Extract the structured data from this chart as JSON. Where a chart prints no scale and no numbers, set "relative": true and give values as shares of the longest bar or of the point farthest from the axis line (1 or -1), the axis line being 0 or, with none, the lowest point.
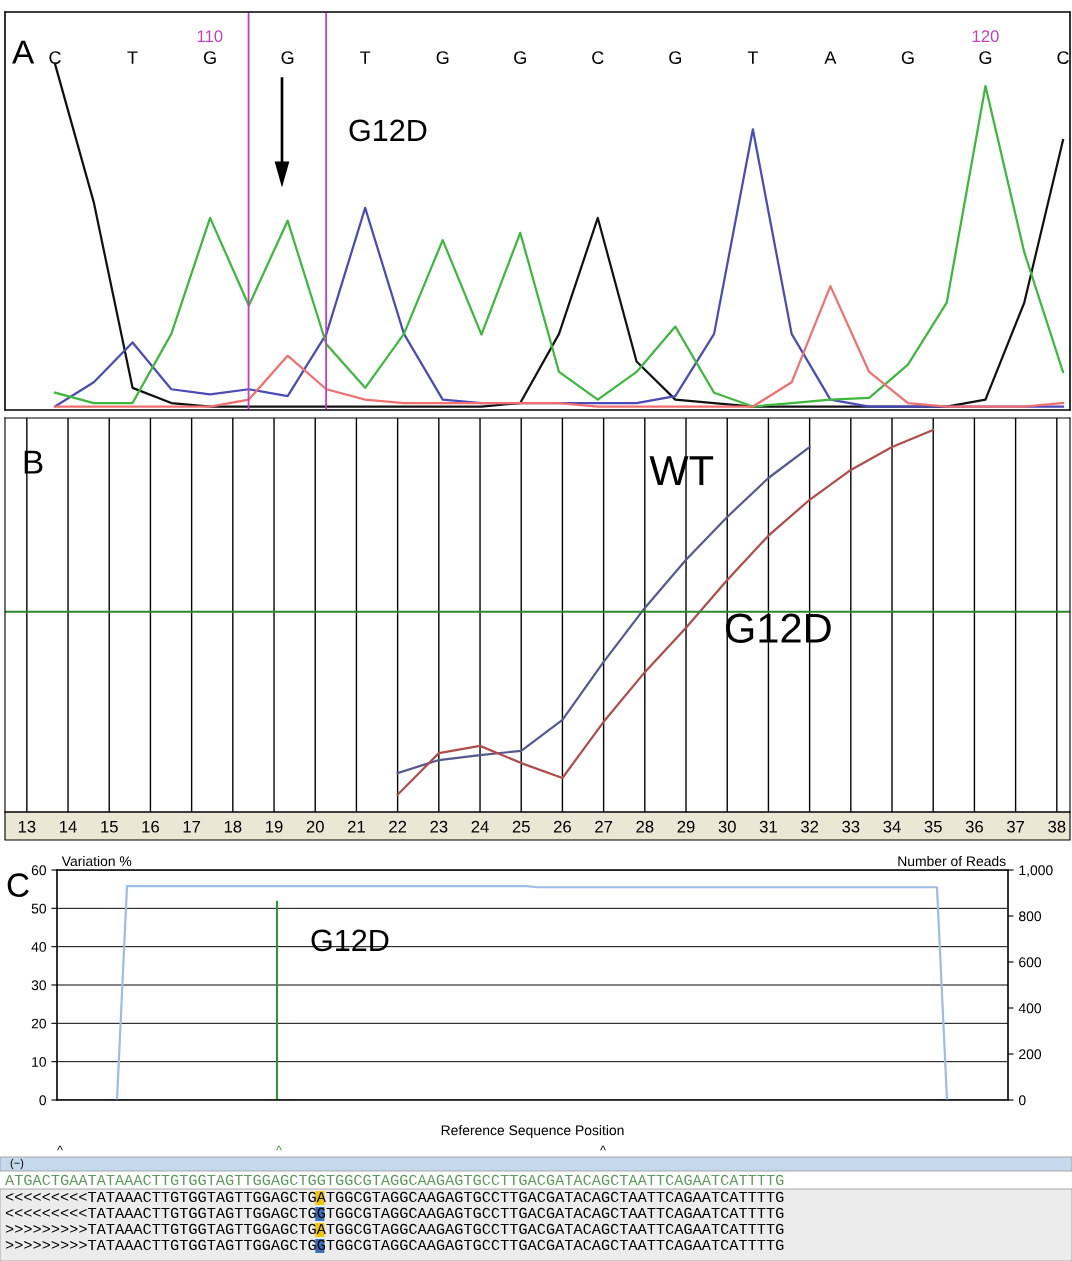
{
  "chart_data": [
    {
      "type": "line",
      "relative": true,
      "tick_labels": "x",
      "categories": [
        "C",
        null,
        "T",
        null,
        "G",
        null,
        "G",
        null,
        "T",
        null,
        "G",
        null,
        "G",
        null,
        "C",
        null,
        "G",
        null,
        "T",
        null,
        "A",
        null,
        "G",
        null,
        "G",
        null,
        "C"
      ],
      "x2lim": [
        107.36,
        121.09
      ],
      "x2ticks": [
        110,
        120
      ],
      "series": [
        {
          "color": "#111111",
          "values": [
            1.0,
            0.6,
            0.064,
            0.02,
            0.01,
            0.01,
            0.01,
            0.01,
            0.01,
            0.01,
            0.01,
            0.01,
            0.02,
            0.22,
            0.555,
            0.14,
            0.03,
            0.02,
            0.01,
            0.01,
            0.01,
            0.01,
            0.01,
            0.01,
            0.03,
            0.31,
            0.78
          ]
        },
        {
          "color": "#4a4ab8",
          "values": [
            0.01,
            0.08,
            0.195,
            0.06,
            0.045,
            0.06,
            0.04,
            0.22,
            0.584,
            0.22,
            0.03,
            0.02,
            0.02,
            0.02,
            0.02,
            0.02,
            0.04,
            0.22,
            0.811,
            0.22,
            0.03,
            0.01,
            0.01,
            0.01,
            0.01,
            0.01,
            0.01
          ]
        },
        {
          "color": "#3cb83c",
          "values": [
            0.05,
            0.02,
            0.02,
            0.22,
            0.555,
            0.302,
            0.547,
            0.19,
            0.064,
            0.22,
            0.491,
            0.218,
            0.512,
            0.11,
            0.03,
            0.11,
            0.241,
            0.05,
            0.01,
            0.02,
            0.03,
            0.035,
            0.131,
            0.31,
            0.936,
            0.456,
            0.11
          ]
        },
        {
          "color": "#f07070",
          "values": [
            0.01,
            0.01,
            0.01,
            0.01,
            0.01,
            0.03,
            0.157,
            0.06,
            0.03,
            0.02,
            0.02,
            0.02,
            0.02,
            0.02,
            0.01,
            0.01,
            0.01,
            0.01,
            0.01,
            0.08,
            0.358,
            0.11,
            0.02,
            0.01,
            0.01,
            0.01,
            0.02
          ]
        }
      ],
      "ref_lines": [
        {
          "axis": "x2",
          "value": 110.5,
          "color": "#c040c0"
        },
        {
          "axis": "x2",
          "value": 111.5,
          "color": "#c040c0"
        }
      ],
      "annotations": [
        "A",
        "G12D"
      ]
    },
    {
      "type": "line",
      "relative": true,
      "tick_labels": "x",
      "grid": "x",
      "categories": [
        "13",
        "14",
        "15",
        "16",
        "17",
        "18",
        "19",
        "20",
        "21",
        "22",
        "23",
        "24",
        "25",
        "26",
        "27",
        "28",
        "29",
        "30",
        "31",
        "32",
        "33",
        "34",
        "35",
        "36",
        "37",
        "38"
      ],
      "series": [
        {
          "name": "WT",
          "color": "#555a8c",
          "values": [
            null,
            null,
            null,
            null,
            null,
            null,
            null,
            null,
            null,
            0.102,
            0.136,
            0.149,
            0.16,
            0.241,
            0.393,
            0.534,
            0.66,
            0.772,
            0.874,
            0.955,
            null,
            null,
            null,
            null,
            null,
            null
          ]
        },
        {
          "name": "G12D",
          "color": "#b04c4a",
          "values": [
            null,
            null,
            null,
            null,
            null,
            null,
            null,
            null,
            null,
            0.045,
            0.154,
            0.173,
            0.128,
            0.089,
            0.236,
            0.366,
            0.482,
            0.607,
            0.723,
            0.817,
            0.895,
            0.955,
            1.0,
            null,
            null,
            null
          ]
        }
      ],
      "ref_lines": [
        {
          "axis": "y",
          "value": 0.524,
          "color": "#2a8a2a"
        }
      ],
      "annotations": [
        "B"
      ]
    },
    {
      "type": "bar",
      "tick_labels": "y",
      "grid": "y",
      "xlabel": "Reference Sequence Position",
      "ylabel": "Variation %",
      "y2label": "Number of Reads",
      "categories": [
        null,
        null,
        null,
        null,
        null,
        null,
        null,
        null,
        null,
        null,
        null,
        null,
        null,
        null,
        null,
        null,
        null,
        null,
        null,
        null,
        null,
        null,
        null,
        null,
        null,
        null,
        null,
        null,
        null,
        null,
        null,
        null,
        null,
        null,
        null,
        null,
        null,
        null,
        null,
        null,
        null,
        null,
        null,
        null,
        null,
        null,
        null,
        null,
        null,
        null,
        null,
        null,
        null,
        null,
        null,
        null,
        null,
        null,
        null,
        null,
        null,
        null,
        null,
        null,
        null,
        null,
        null,
        null,
        null,
        null,
        null,
        null,
        null,
        null,
        null,
        null,
        null,
        null,
        null,
        null,
        null,
        null,
        null,
        null,
        null,
        null,
        null,
        null,
        null,
        null,
        null,
        null,
        null,
        null,
        null,
        null
      ],
      "ylim": [
        0,
        60
      ],
      "yticks": [
        0,
        10,
        20,
        30,
        40,
        50,
        60
      ],
      "y2lim": [
        0,
        1000
      ],
      "y2ticks": [
        0,
        200,
        400,
        600,
        800,
        {
          "value": 1000,
          "label": "1,000"
        }
      ],
      "series": [
        {
          "type": "bar",
          "color": "#2a9a2a",
          "values": [
            null,
            null,
            null,
            null,
            null,
            null,
            null,
            null,
            null,
            null,
            null,
            null,
            null,
            null,
            null,
            null,
            null,
            null,
            null,
            null,
            null,
            null,
            52,
            null,
            null,
            null,
            null,
            null,
            null,
            null,
            null,
            null,
            null,
            null,
            null,
            null,
            null,
            null,
            null,
            null,
            null,
            null,
            null,
            null,
            null,
            null,
            null,
            null,
            null,
            null,
            null,
            null,
            null,
            null,
            null,
            null,
            null,
            null,
            null,
            null,
            null,
            null,
            null,
            null,
            null,
            null,
            null,
            null,
            null,
            null,
            null,
            null,
            null,
            null,
            null,
            null,
            null,
            null,
            null,
            null,
            null,
            null,
            null,
            null,
            null,
            null,
            null,
            null,
            null,
            null,
            null,
            null,
            null,
            null,
            null,
            null
          ]
        },
        {
          "type": "line",
          "axis": "y2",
          "color": "#9dbde6",
          "values": [
            null,
            null,
            null,
            null,
            null,
            null,
            0,
            930,
            930,
            930,
            930,
            930,
            930,
            930,
            930,
            930,
            930,
            930,
            930,
            930,
            930,
            930,
            930,
            930,
            930,
            930,
            930,
            930,
            930,
            930,
            930,
            930,
            930,
            930,
            930,
            930,
            930,
            930,
            930,
            930,
            930,
            930,
            930,
            930,
            930,
            930,
            930,
            930,
            925,
            925,
            925,
            925,
            925,
            925,
            925,
            925,
            925,
            925,
            925,
            925,
            925,
            925,
            925,
            925,
            925,
            925,
            925,
            925,
            925,
            925,
            925,
            925,
            925,
            925,
            925,
            925,
            925,
            925,
            925,
            925,
            925,
            925,
            925,
            925,
            925,
            925,
            925,
            925,
            925,
            0,
            null,
            null,
            null,
            null,
            null,
            null
          ]
        }
      ],
      "annotations": [
        "C",
        "G12D",
        "^",
        "^",
        "^",
        "(−)",
        "ATGACTGAATATAAACTTGTGGTAGTTGGAGCTGGTGGCGTAGGCAAGAGTGCCTTGACGATACAGCTAATTCAGAATCATTTTG",
        "<<<<<<<<<TATAAACTTGTGGTAGTTGGAGCTGATGGCGTAGGCAAGAGTGCCTTGACGATACAGCTAATTCAGAATCATTTTG",
        "<<<<<<<<<TATAAACTTGTGGTAGTTGGAGCTGGTGGCGTAGGCAAGAGTGCCTTGACGATACAGCTAATTCAGAATCATTTTG",
        ">>>>>>>>>TATAAACTTGTGGTAGTTGGAGCTGATGGCGTAGGCAAGAGTGCCTTGACGATACAGCTAATTCAGAATCATTTTG",
        ">>>>>>>>>TATAAACTTGTGGTAGTTGGAGCTGGTGGCGTAGGCAAGAGTGCCTTGACGATACAGCTAATTCAGAATCATTTTG"
      ]
    }
  ]
}
